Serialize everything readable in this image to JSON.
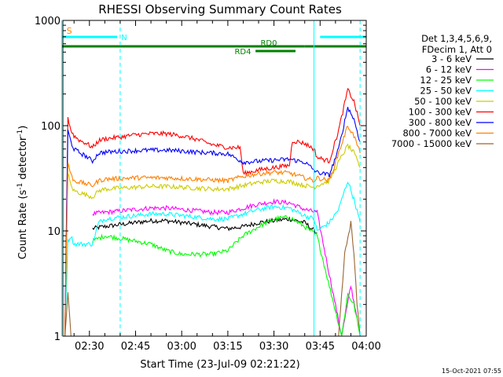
{
  "chart_data": {
    "type": "line",
    "title": "RHESSI Observing Summary Count Rates",
    "xlabel": "Start Time (23-Jul-09 02:21:22)",
    "ylabel_main": "Count Rate (s",
    "ylabel_sup1": "-1",
    "ylabel_mid": " detector",
    "ylabel_sup2": "-1",
    "ylabel_end": ")",
    "yscale": "log",
    "ylim": [
      1,
      1000
    ],
    "y_ticks": [
      {
        "v": 1,
        "label": "1"
      },
      {
        "v": 10,
        "label": "10"
      },
      {
        "v": 100,
        "label": "100"
      },
      {
        "v": 1000,
        "label": "1000"
      }
    ],
    "xlim": [
      "02:21:22",
      "04:00:00"
    ],
    "x_ticks": [
      {
        "label": "02:30",
        "min": 30
      },
      {
        "label": "02:45",
        "min": 45
      },
      {
        "label": "03:00",
        "min": 60
      },
      {
        "label": "03:15",
        "min": 75
      },
      {
        "label": "03:30",
        "min": 90
      },
      {
        "label": "03:45",
        "min": 105
      },
      {
        "label": "04:00",
        "min": 120
      }
    ],
    "legend_header": [
      "Det 1,3,4,5,6,9,",
      "FDecim 1, Att 0"
    ],
    "series": [
      {
        "name": "3 - 6 keV",
        "color": "#000000",
        "x": [
          "02:31",
          "02:33",
          "02:35",
          "02:40",
          "02:45",
          "02:50",
          "02:55",
          "03:00",
          "03:05",
          "03:10",
          "03:15",
          "03:20",
          "03:25",
          "03:30",
          "03:35",
          "03:40",
          "03:44"
        ],
        "values": [
          10.5,
          10.8,
          11,
          11.5,
          12,
          12.5,
          12.5,
          12,
          11.5,
          11,
          10.5,
          11,
          12,
          12.5,
          13,
          12,
          9.5
        ]
      },
      {
        "name": "6 - 12 keV",
        "color": "#ff00ff",
        "x": [
          "02:31",
          "02:33",
          "02:35",
          "02:40",
          "02:45",
          "02:50",
          "02:55",
          "03:00",
          "03:05",
          "03:10",
          "03:15",
          "03:20",
          "03:25",
          "03:30",
          "03:35",
          "03:40",
          "03:44",
          "03:52",
          "03:55",
          "03:57"
        ],
        "values": [
          14.5,
          14.8,
          15,
          15.5,
          16,
          16.5,
          16.5,
          16,
          15.5,
          15,
          15,
          16.5,
          18,
          19,
          18.5,
          16,
          15,
          1,
          3,
          1.5
        ]
      },
      {
        "name": "12 - 25 keV",
        "color": "#00ff00",
        "x": [
          "02:31",
          "02:33",
          "02:35",
          "02:40",
          "02:45",
          "02:50",
          "02:55",
          "03:00",
          "03:05",
          "03:10",
          "03:15",
          "03:20",
          "03:25",
          "03:30",
          "03:35",
          "03:40",
          "03:44",
          "03:52",
          "03:54",
          "03:56",
          "03:58"
        ],
        "values": [
          8,
          8.5,
          9,
          8.5,
          8,
          7.5,
          6.5,
          6,
          6,
          6,
          6.5,
          9,
          11,
          13,
          13.5,
          11,
          9,
          1,
          2.5,
          2,
          1
        ]
      },
      {
        "name": "25 - 50 keV",
        "color": "#00ffff",
        "x": [
          "02:22",
          "02:23",
          "02:24",
          "02:25",
          "02:27",
          "02:29",
          "02:31",
          "02:33",
          "02:35",
          "02:40",
          "02:45",
          "02:50",
          "02:55",
          "03:00",
          "03:05",
          "03:10",
          "03:15",
          "03:20",
          "03:25",
          "03:30",
          "03:35",
          "03:40",
          "03:43",
          "03:44",
          "03:48",
          "03:51",
          "03:54",
          "03:56",
          "03:58"
        ],
        "values": [
          1,
          8,
          9,
          7.5,
          7.5,
          7.5,
          7.5,
          12,
          13,
          13.5,
          14,
          14.5,
          14.5,
          14,
          13.5,
          13,
          13,
          14.5,
          16,
          17,
          16.5,
          14,
          13,
          10,
          12,
          16,
          30,
          20,
          12
        ]
      },
      {
        "name": "50 - 100 keV",
        "color": "#cccc00",
        "x": [
          "02:22",
          "02:23",
          "02:24",
          "02:25",
          "02:27",
          "02:29",
          "02:31",
          "02:33",
          "02:35",
          "02:40",
          "02:45",
          "02:50",
          "02:55",
          "03:00",
          "03:05",
          "03:10",
          "03:15",
          "03:20",
          "03:25",
          "03:30",
          "03:35",
          "03:40",
          "03:43",
          "03:44",
          "03:48",
          "03:51",
          "03:54",
          "03:56",
          "03:58"
        ],
        "values": [
          1,
          35,
          27,
          24,
          23,
          22,
          21,
          24,
          25,
          25.5,
          26,
          26.5,
          26.5,
          26,
          25.5,
          25,
          25,
          27,
          29,
          30,
          29.5,
          27,
          26,
          27,
          30,
          45,
          65,
          55,
          40
        ]
      },
      {
        "name": "100 - 300 keV",
        "color": "#ff0000",
        "x": [
          "02:22",
          "02:23",
          "02:24",
          "02:25",
          "02:27",
          "02:29",
          "02:31",
          "02:33",
          "02:35",
          "02:40",
          "02:45",
          "02:50",
          "02:55",
          "03:00",
          "03:05",
          "03:10",
          "03:15",
          "03:19",
          "03:20",
          "03:25",
          "03:30",
          "03:35",
          "03:36",
          "03:40",
          "03:43",
          "03:44",
          "03:48",
          "03:51",
          "03:54",
          "03:56",
          "03:58"
        ],
        "values": [
          1,
          120,
          90,
          80,
          72,
          68,
          62,
          72,
          75,
          78,
          82,
          84,
          84,
          80,
          74,
          66,
          62,
          62,
          35,
          38,
          40,
          42,
          72,
          68,
          60,
          50,
          46,
          90,
          220,
          170,
          100
        ]
      },
      {
        "name": "300 - 800 keV",
        "color": "#0000ff",
        "x": [
          "02:22",
          "02:23",
          "02:24",
          "02:25",
          "02:27",
          "02:29",
          "02:31",
          "02:33",
          "02:35",
          "02:40",
          "02:45",
          "02:50",
          "02:55",
          "03:00",
          "03:05",
          "03:10",
          "03:15",
          "03:20",
          "03:25",
          "03:30",
          "03:35",
          "03:40",
          "03:43",
          "03:44",
          "03:48",
          "03:51",
          "03:54",
          "03:56",
          "03:58"
        ],
        "values": [
          1,
          90,
          70,
          60,
          55,
          51,
          46,
          55,
          56,
          57,
          58,
          58.5,
          58.5,
          57.5,
          56,
          55,
          54,
          45,
          46,
          47,
          48,
          45,
          38,
          36,
          34,
          60,
          150,
          115,
          70
        ]
      },
      {
        "name": "800 - 7000 keV",
        "color": "#ff8000",
        "x": [
          "02:22",
          "02:23",
          "02:24",
          "02:25",
          "02:27",
          "02:29",
          "02:31",
          "02:33",
          "02:35",
          "02:40",
          "02:45",
          "02:50",
          "02:55",
          "03:00",
          "03:05",
          "03:10",
          "03:15",
          "03:20",
          "03:25",
          "03:30",
          "03:35",
          "03:40",
          "03:43",
          "03:44",
          "03:48",
          "03:51",
          "03:54",
          "03:56",
          "03:58"
        ],
        "values": [
          1,
          45,
          34,
          30,
          29,
          28,
          27,
          30,
          31,
          31.5,
          32,
          32,
          32,
          31.5,
          31,
          30.5,
          30,
          33,
          35,
          36,
          35.5,
          32,
          30,
          32,
          30,
          55,
          100,
          80,
          55
        ]
      },
      {
        "name": "7000 - 15000 keV",
        "color": "#996633",
        "x": [
          "02:22",
          "02:23",
          "02:24",
          "02:25",
          "03:51",
          "03:53",
          "03:55",
          "03:56",
          "03:57",
          "03:58"
        ],
        "values": [
          1,
          2.5,
          1,
          1,
          1,
          6,
          12,
          6,
          2,
          1
        ]
      }
    ],
    "markers": [
      {
        "label": "S",
        "color": "#ff8000",
        "x": [
          "02:21",
          "02:21"
        ]
      },
      {
        "label": "N",
        "color": "#00ffff",
        "x": [
          "02:21",
          "02:39"
        ]
      },
      {
        "label": "",
        "color": "#00ffff",
        "x": [
          "03:45",
          "04:00"
        ]
      },
      {
        "label": "RD0",
        "color": "#008000",
        "x": [
          "02:21",
          "03:40"
        ]
      },
      {
        "label": "RD4",
        "color": "#008000",
        "x": [
          "03:24",
          "03:37"
        ]
      },
      {
        "label": "",
        "color": "#008000",
        "x": [
          "03:40",
          "04:00"
        ]
      }
    ],
    "vlines": [
      {
        "x": "02:21",
        "style": "solid",
        "color": "#00ffff"
      },
      {
        "x": "02:40",
        "style": "dashed",
        "color": "#00ffff"
      },
      {
        "x": "03:43",
        "style": "solid",
        "color": "#00ffff"
      },
      {
        "x": "03:58",
        "style": "dashed",
        "color": "#00ffff"
      }
    ],
    "timestamp": "15-Oct-2021 07:55"
  }
}
